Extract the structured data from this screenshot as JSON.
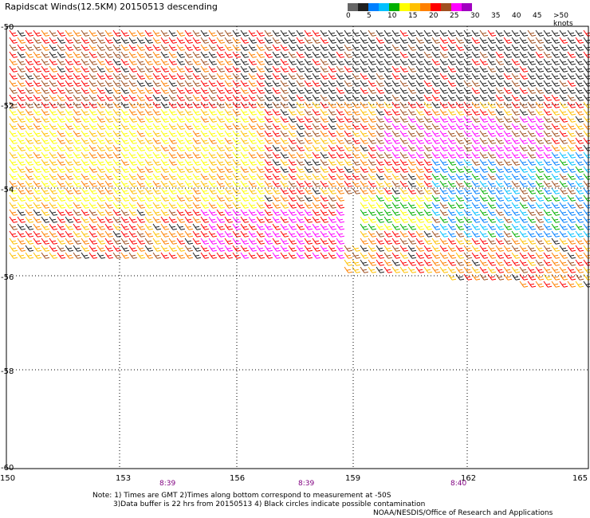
{
  "header": {
    "title": "Rapidscat Winds(12.5KM) 20150513 descending"
  },
  "legend": {
    "colors": [
      "#666666",
      "#202020",
      "#0080ff",
      "#00c0ff",
      "#00b000",
      "#ffff00",
      "#ffc000",
      "#ff8000",
      "#ff0000",
      "#a05020",
      "#ff00ff",
      "#a000c0"
    ],
    "labels": [
      "0",
      "5",
      "10",
      "15",
      "20",
      "25",
      "30",
      "35",
      "40",
      "45",
      ">50 knots"
    ]
  },
  "map": {
    "lat_labels": [
      "-50",
      "-52",
      "-54",
      "-56",
      "-58",
      "-60"
    ],
    "lon_labels": [
      "150",
      "153",
      "156",
      "159",
      "162",
      "165"
    ],
    "pass_times": [
      "8:39",
      "8:39",
      "8:40"
    ]
  },
  "notes": {
    "line1": "Note: 1) Times are GMT 2)Times along bottom correspond to measurement at -50S",
    "line2": "3)Data buffer is 22 hrs from 20150513 4) Black circles indicate possible contamination"
  },
  "credit": "NOAA/NESDIS/Office of Research and Applications"
}
